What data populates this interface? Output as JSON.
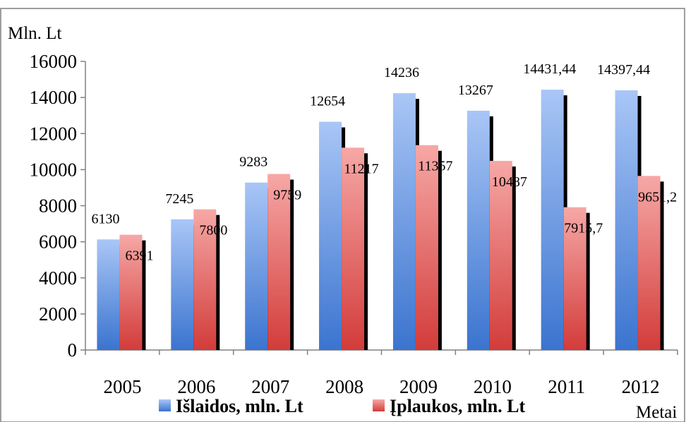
{
  "chart_data": {
    "type": "bar",
    "ylabel": "Mln. Lt",
    "xlabel": "Metai",
    "ylim": [
      0,
      16000
    ],
    "yticks": [
      "0",
      "2000",
      "4000",
      "6000",
      "8000",
      "10000",
      "12000",
      "14000",
      "16000"
    ],
    "categories": [
      "2005",
      "2006",
      "2007",
      "2008",
      "2009",
      "2010",
      "2011",
      "2012"
    ],
    "grid": false,
    "legend_position": "bottom",
    "series": [
      {
        "name": "Išlaidos, mln. Lt",
        "color": "#6f9be0",
        "values": [
          6130,
          7245,
          9283,
          12654,
          14236,
          13267,
          14431.44,
          14397.44
        ],
        "labels": [
          "6130",
          "7245",
          "9283",
          "12654",
          "14236",
          "13267",
          "14431,44",
          "14397,44"
        ]
      },
      {
        "name": "Įplaukos, mln. Lt",
        "color": "#e46767",
        "values": [
          6391,
          7800,
          9759,
          11217,
          11357,
          10487,
          7915.7,
          9651.2
        ],
        "labels": [
          "6391",
          "7800",
          "9759",
          "11217",
          "11357",
          "10487",
          "7915,7",
          "9651,2"
        ]
      }
    ]
  }
}
